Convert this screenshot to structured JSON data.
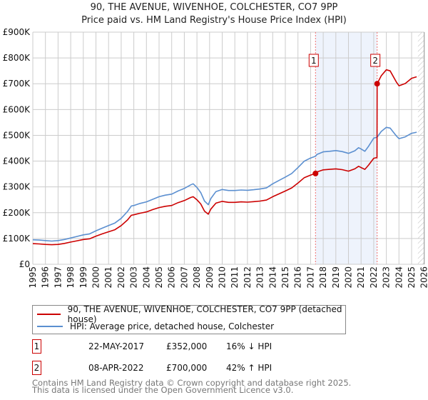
{
  "chart_data": {
    "type": "line",
    "title": "90, THE AVENUE, WIVENHOE, COLCHESTER, CO7 9PP",
    "subtitle": "Price paid vs. HM Land Registry's House Price Index (HPI)",
    "xlim": [
      1995,
      2026
    ],
    "ylim": [
      0,
      900000
    ],
    "x_ticks": [
      "1995",
      "1996",
      "1997",
      "1998",
      "1999",
      "2000",
      "2001",
      "2002",
      "2003",
      "2004",
      "2005",
      "2006",
      "2007",
      "2008",
      "2009",
      "2010",
      "2011",
      "2012",
      "2013",
      "2014",
      "2015",
      "2016",
      "2017",
      "2018",
      "2019",
      "2020",
      "2021",
      "2022",
      "2023",
      "2024",
      "2025",
      "2026"
    ],
    "y_ticks": [
      {
        "value": 0,
        "label": "£0"
      },
      {
        "value": 100000,
        "label": "£100K"
      },
      {
        "value": 200000,
        "label": "£200K"
      },
      {
        "value": 300000,
        "label": "£300K"
      },
      {
        "value": 400000,
        "label": "£400K"
      },
      {
        "value": 500000,
        "label": "£500K"
      },
      {
        "value": 600000,
        "label": "£600K"
      },
      {
        "value": 700000,
        "label": "£700K"
      },
      {
        "value": 800000,
        "label": "£800K"
      },
      {
        "value": 900000,
        "label": "£900K"
      }
    ],
    "grid": true,
    "shaded_range": [
      2017.39,
      2022.27
    ],
    "forecast_hatch_from": 2025.5,
    "series": [
      {
        "name": "90, THE AVENUE, WIVENHOE, COLCHESTER, CO7 9PP (detached house)",
        "color": "#cc0000",
        "x": [
          1995,
          1995.5,
          1996,
          1996.5,
          1997,
          1997.5,
          1998,
          1998.5,
          1999,
          1999.5,
          2000,
          2000.5,
          2001,
          2001.5,
          2002,
          2002.5,
          2002.8,
          2003,
          2003.5,
          2004,
          2004.5,
          2005,
          2005.5,
          2006,
          2006.5,
          2007,
          2007.5,
          2007.7,
          2008,
          2008.3,
          2008.6,
          2008.9,
          2009.1,
          2009.5,
          2010,
          2010.5,
          2011,
          2011.5,
          2012,
          2012.5,
          2013,
          2013.5,
          2014,
          2014.5,
          2015,
          2015.5,
          2016,
          2016.5,
          2017,
          2017.39,
          2017.5,
          2018,
          2018.5,
          2019,
          2019.5,
          2020,
          2020.5,
          2020.8,
          2021,
          2021.3,
          2021.6,
          2022,
          2022.26,
          2022.27,
          2022.6,
          2023,
          2023.3,
          2023.8,
          2024,
          2024.5,
          2025,
          2025.4
        ],
        "y": [
          80000,
          79000,
          77000,
          76000,
          77000,
          81000,
          86000,
          91000,
          96000,
          99000,
          109000,
          118000,
          126000,
          134000,
          150000,
          172000,
          190000,
          192000,
          198000,
          203000,
          212000,
          220000,
          225000,
          228000,
          239000,
          247000,
          259000,
          262000,
          250000,
          234000,
          206000,
          194000,
          214000,
          237000,
          244000,
          240000,
          240000,
          242000,
          241000,
          243000,
          245000,
          249000,
          262000,
          273000,
          284000,
          296000,
          315000,
          336000,
          346000,
          352000,
          358000,
          366000,
          368000,
          370000,
          367000,
          361000,
          370000,
          380000,
          375000,
          368000,
          385000,
          411000,
          414000,
          700000,
          731000,
          754000,
          750000,
          706000,
          692000,
          701000,
          721000,
          727000
        ]
      },
      {
        "name": "HPI: Average price, detached house, Colchester",
        "color": "#5b8fd0",
        "x": [
          1995,
          1995.5,
          1996,
          1996.5,
          1997,
          1997.5,
          1998,
          1998.5,
          1999,
          1999.5,
          2000,
          2000.5,
          2001,
          2001.5,
          2002,
          2002.5,
          2002.8,
          2003,
          2003.5,
          2004,
          2004.5,
          2005,
          2005.5,
          2006,
          2006.5,
          2007,
          2007.5,
          2007.7,
          2008,
          2008.3,
          2008.6,
          2008.9,
          2009.1,
          2009.5,
          2010,
          2010.5,
          2011,
          2011.5,
          2012,
          2012.5,
          2013,
          2013.5,
          2014,
          2014.5,
          2015,
          2015.5,
          2016,
          2016.5,
          2017,
          2017.39,
          2017.5,
          2018,
          2018.5,
          2019,
          2019.5,
          2020,
          2020.5,
          2020.8,
          2021,
          2021.3,
          2021.6,
          2022,
          2022.27,
          2022.6,
          2023,
          2023.3,
          2023.8,
          2024,
          2024.5,
          2025,
          2025.4
        ],
        "y": [
          95000,
          94000,
          92000,
          90000,
          92000,
          96000,
          102000,
          108000,
          114000,
          118000,
          130000,
          140000,
          150000,
          160000,
          178000,
          205000,
          226000,
          228000,
          236000,
          242000,
          252000,
          262000,
          268000,
          272000,
          284000,
          294000,
          308000,
          312000,
          298000,
          278000,
          245000,
          231000,
          255000,
          282000,
          290000,
          286000,
          286000,
          288000,
          287000,
          289000,
          292000,
          296000,
          312000,
          325000,
          338000,
          352000,
          375000,
          400000,
          412000,
          419000,
          426000,
          436000,
          438000,
          441000,
          437000,
          430000,
          440000,
          452000,
          447000,
          438000,
          458000,
          489000,
          493000,
          515000,
          531000,
          528000,
          497000,
          487000,
          494000,
          508000,
          512000
        ]
      }
    ],
    "annotations": [
      {
        "label": "1",
        "x": 2017.39,
        "y": 352000
      },
      {
        "label": "2",
        "x": 2022.27,
        "y": 700000
      }
    ]
  },
  "legend": {
    "property": "90, THE AVENUE, WIVENHOE, COLCHESTER, CO7 9PP (detached house)",
    "hpi": "HPI: Average price, detached house, Colchester"
  },
  "transactions": [
    {
      "num": "1",
      "date": "22-MAY-2017",
      "price": "£352,000",
      "hpi": "16% ↓ HPI"
    },
    {
      "num": "2",
      "date": "08-APR-2022",
      "price": "£700,000",
      "hpi": "42% ↑ HPI"
    }
  ],
  "footer": {
    "line1": "Contains HM Land Registry data © Crown copyright and database right 2025.",
    "line2": "This data is licensed under the Open Government Licence v3.0."
  }
}
